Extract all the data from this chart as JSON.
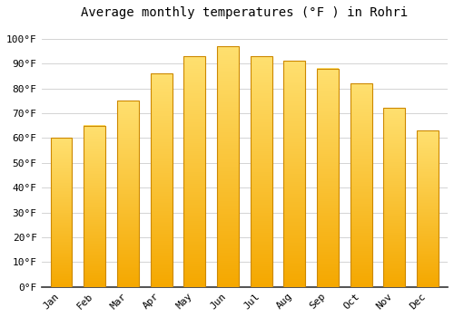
{
  "title": "Average monthly temperatures (°F ) in Rohri",
  "months": [
    "Jan",
    "Feb",
    "Mar",
    "Apr",
    "May",
    "Jun",
    "Jul",
    "Aug",
    "Sep",
    "Oct",
    "Nov",
    "Dec"
  ],
  "values": [
    60,
    65,
    75,
    86,
    93,
    97,
    93,
    91,
    88,
    82,
    72,
    63
  ],
  "bar_color_bottom": "#F5A800",
  "bar_color_top": "#FFE070",
  "bar_edge_color": "#CC8800",
  "background_color": "#FFFFFF",
  "grid_color": "#CCCCCC",
  "ylim": [
    0,
    105
  ],
  "yticks": [
    0,
    10,
    20,
    30,
    40,
    50,
    60,
    70,
    80,
    90,
    100
  ],
  "title_fontsize": 10,
  "tick_fontsize": 8,
  "font_family": "monospace"
}
